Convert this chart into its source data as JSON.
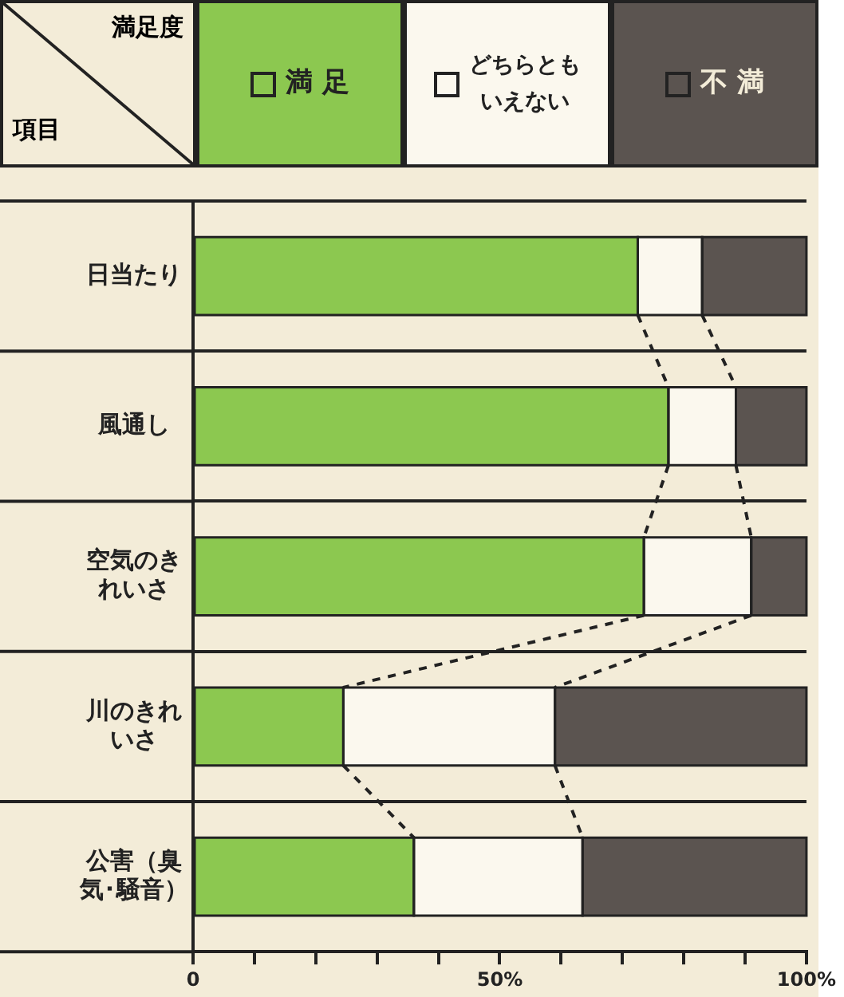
{
  "chart_data": {
    "type": "bar",
    "orientation": "horizontal",
    "stacked": true,
    "legend": "top",
    "legend_title": "満足度",
    "annotations": [
      "項目"
    ],
    "grid": "y",
    "categories": [
      "日当たり",
      "風通し",
      "空気のきれいさ",
      "川のきれいさ",
      "公害（臭気･騒音）"
    ],
    "series": [
      {
        "name": "満 足",
        "color": "#8cc850",
        "values": [
          72.5,
          77.5,
          73.5,
          24.5,
          36
        ]
      },
      {
        "name": "どちらともいえない",
        "color": "#fbf8ee",
        "values": [
          10.5,
          11,
          17.5,
          34.5,
          27.5
        ]
      },
      {
        "name": "不 満",
        "color": "#5b5450",
        "values": [
          17,
          11.5,
          9,
          41,
          36.5
        ]
      }
    ],
    "xlim": [
      0,
      100
    ],
    "xticks": [
      {
        "value": 0,
        "label": "0"
      },
      {
        "value": 10,
        "label": null
      },
      {
        "value": 20,
        "label": null
      },
      {
        "value": 30,
        "label": null
      },
      {
        "value": 40,
        "label": null
      },
      {
        "value": 50,
        "label": "50%"
      },
      {
        "value": 60,
        "label": null
      },
      {
        "value": 70,
        "label": null
      },
      {
        "value": 80,
        "label": null
      },
      {
        "value": 90,
        "label": null
      },
      {
        "value": 100,
        "label": "100%"
      }
    ]
  }
}
